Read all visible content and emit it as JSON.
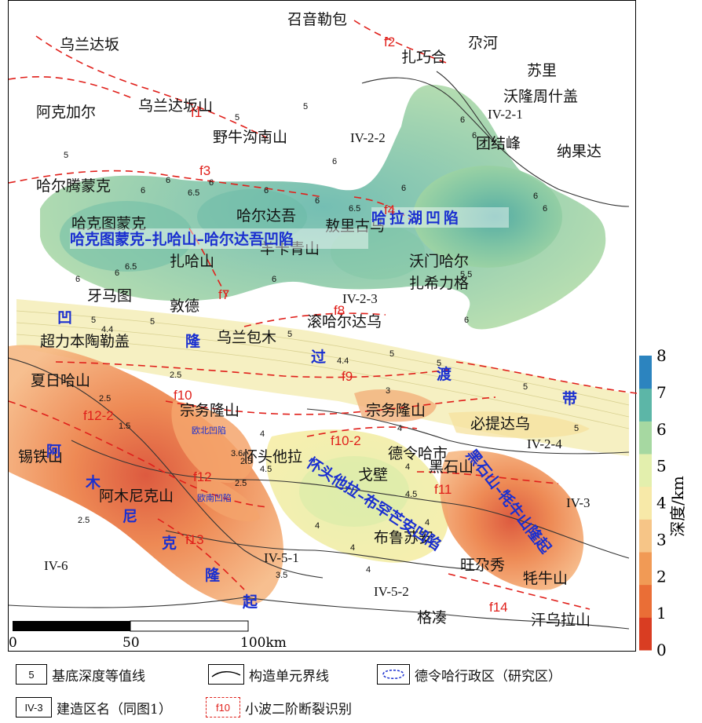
{
  "places": {
    "zhaoyinlebao": "召音勒包",
    "wulandaban": "乌兰达坂",
    "zhaqiaohe": "扎巧合",
    "duohe": "尕河",
    "suli": "苏里",
    "wolongzhoushigai": "沃隆周什盖",
    "akejiaer": "阿克加尔",
    "wulandabanshan": "乌兰达坂山",
    "yeniugounanshan": "野牛沟南山",
    "tuanjiefeng": "团结峰",
    "naguoda": "纳果达",
    "haertengmengke": "哈尔腾蒙克",
    "haketumengke": "哈克图蒙克",
    "haerdawu": "哈尔达吾",
    "aoliguma": "敖里古马",
    "zhahashan": "扎哈山",
    "yangqingshan": "羊卡青山",
    "womenhaer": "沃门哈尔",
    "zhaxilige": "扎希力格",
    "yamatu": "牙马图",
    "dunde": "敦德",
    "gunhaerdawu": "滚哈尔达乌",
    "chaolibentaolegai": "超力本陶勒盖",
    "wulanbaomu": "乌兰包木",
    "xiarihashan": "夏日哈山",
    "zongwulongshan1": "宗务隆山",
    "zongwulongshan2": "宗务隆山",
    "bitidawu": "必提达乌",
    "xitieshan": "锡铁山",
    "huaitoutala": "怀头他拉",
    "gebi": "戈壁",
    "delinghashi": "德令哈市",
    "heishishan": "黑石山",
    "amunikeshan": "阿木尼克山",
    "bulunan": "布鲁苏安",
    "wangduoxiu": "旺尕秀",
    "maoniu": "牦牛山",
    "gecou": "格凑",
    "hanwulashan": "汗乌拉山"
  },
  "units": {
    "u1": "IV-2-1",
    "u2": "IV-2-2",
    "u3": "IV-2-3",
    "u4": "IV-2-4",
    "u5": "IV-3",
    "u6": "IV-5-1",
    "u7": "IV-5-2",
    "u8": "IV-6"
  },
  "basins": {
    "halahu": "哈拉湖凹陷",
    "haketu": "哈克图蒙克–扎哈山–哈尔达吾凹陷",
    "huaitou": "怀头他拉–布罕芒安凹陷",
    "heishishan": "黑石山–牦牛山隆起",
    "amunike": [
      "阿",
      "木",
      "尼",
      "克",
      "隆",
      "起"
    ],
    "aoguodu": [
      "凹",
      "隆",
      "过",
      "渡",
      "带"
    ],
    "oubei": "欧北凹陷",
    "ounan": "欧南凹陷"
  },
  "faults": [
    "f1",
    "f2",
    "f3",
    "f4",
    "f7",
    "f8",
    "f9",
    "f10",
    "f10-2",
    "f11",
    "f12",
    "f12-2",
    "f13",
    "f14"
  ],
  "contour_labels": [
    "5",
    "5",
    "5",
    "6",
    "6",
    "6",
    "6.5",
    "6",
    "6",
    "6",
    "6.5",
    "6",
    "6",
    "6",
    "6",
    "6",
    "6",
    "6.5",
    "6",
    "5",
    "5",
    "6",
    "6",
    "5",
    "4.4",
    "5",
    "5",
    "4.4",
    "5",
    "5",
    "2.5",
    "2.5",
    "1.5",
    "2.5",
    "3.6",
    "4.5",
    "4.5",
    "4",
    "2.5",
    "4",
    "4",
    "4",
    "4",
    "4",
    "3",
    "4",
    "3.5",
    "2.5",
    "5.5"
  ],
  "scalebar": {
    "labels": [
      "0",
      "50",
      "100km"
    ]
  },
  "colorbar": {
    "title": "深度/km",
    "ticks": [
      "0",
      "1",
      "2",
      "3",
      "4",
      "5",
      "6",
      "7",
      "8"
    ],
    "colors": [
      "#d93d22",
      "#ea6e36",
      "#f19a55",
      "#f6c587",
      "#f7e9a8",
      "#e3efad",
      "#a6d8a1",
      "#5cb6a7",
      "#2c84bf"
    ]
  },
  "legend": {
    "contour_box": "5",
    "contour_label": "基底深度等值线",
    "boundary_label": "构造单元界线",
    "admin_label": "德令哈行政区（研究区）",
    "unit_box": "IV-3",
    "unit_label": "建造区名（同图1）",
    "fault_box": "f10",
    "fault_label": "小波二阶断裂识别"
  }
}
